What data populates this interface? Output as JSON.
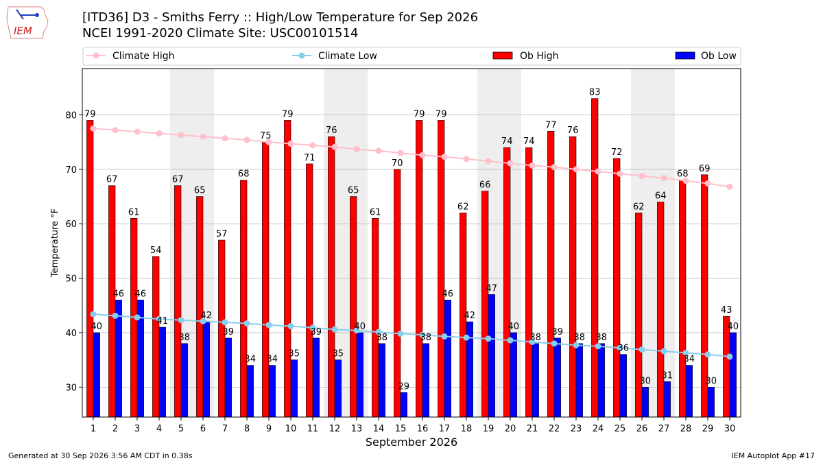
{
  "header": {
    "title_line1": "[ITD36] D3 - Smiths Ferry  :: High/Low Temperature for Sep 2026",
    "title_line2": "NCEI 1991-2020 Climate Site: USC00101514",
    "logo_text": "IEM"
  },
  "footer": {
    "generated": "Generated at 30 Sep 2026 3:56 AM CDT in 0.38s",
    "app": "IEM Autoplot App #17"
  },
  "legend": {
    "climate_high": "Climate High",
    "climate_low": "Climate Low",
    "ob_high": "Ob High",
    "ob_low": "Ob Low"
  },
  "colors": {
    "ob_high": "#ff0000",
    "ob_low": "#0000ff",
    "climate_high": "#ffc0cb",
    "climate_low": "#87ceeb",
    "weekend_band": "#eeeeee",
    "grid": "#b0b0b0"
  },
  "chart_data": {
    "type": "bar",
    "xlabel": "September 2026",
    "ylabel": "Temperature °F",
    "ylim": [
      24.5,
      88.5
    ],
    "yticks": [
      30,
      40,
      50,
      60,
      70,
      80
    ],
    "grid": "horizontal",
    "legend_placement": "top",
    "shaded_days": [
      5,
      6,
      12,
      13,
      19,
      20,
      26,
      27
    ],
    "categories": [
      1,
      2,
      3,
      4,
      5,
      6,
      7,
      8,
      9,
      10,
      11,
      12,
      13,
      14,
      15,
      16,
      17,
      18,
      19,
      20,
      21,
      22,
      23,
      24,
      25,
      26,
      27,
      28,
      29,
      30
    ],
    "series": [
      {
        "name": "Ob High",
        "type": "bar",
        "values": [
          79,
          67,
          61,
          54,
          67,
          65,
          57,
          68,
          75,
          79,
          71,
          76,
          65,
          61,
          70,
          79,
          79,
          62,
          66,
          74,
          74,
          77,
          76,
          83,
          72,
          62,
          64,
          68,
          69,
          43
        ]
      },
      {
        "name": "Ob Low",
        "type": "bar",
        "values": [
          40,
          46,
          46,
          41,
          38,
          42,
          39,
          34,
          34,
          35,
          39,
          35,
          40,
          38,
          29,
          38,
          46,
          42,
          47,
          40,
          38,
          39,
          38,
          38,
          36,
          30,
          31,
          34,
          30,
          40
        ]
      },
      {
        "name": "Climate High",
        "type": "line",
        "values": [
          77.5,
          77.2,
          76.9,
          76.6,
          76.3,
          76.0,
          75.7,
          75.4,
          75.0,
          74.7,
          74.4,
          74.1,
          73.7,
          73.4,
          73.0,
          72.6,
          72.3,
          71.9,
          71.5,
          71.1,
          70.7,
          70.4,
          70.0,
          69.6,
          69.2,
          68.8,
          68.4,
          67.9,
          67.4,
          66.8
        ]
      },
      {
        "name": "Climate Low",
        "type": "line",
        "values": [
          43.4,
          43.1,
          42.8,
          42.5,
          42.3,
          42.1,
          41.9,
          41.7,
          41.4,
          41.2,
          40.9,
          40.6,
          40.4,
          40.1,
          39.8,
          39.6,
          39.3,
          39.1,
          38.9,
          38.6,
          38.3,
          38.0,
          37.7,
          37.5,
          37.2,
          36.9,
          36.6,
          36.3,
          36.0,
          35.6
        ]
      }
    ]
  }
}
